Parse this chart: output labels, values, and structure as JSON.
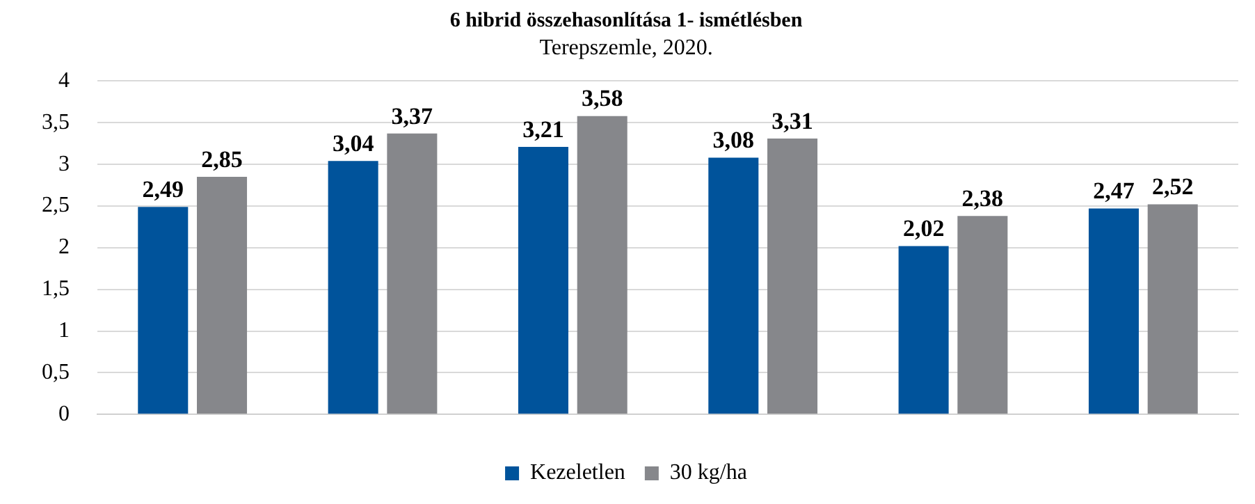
{
  "chart_data": {
    "type": "bar",
    "title": "6 hibrid összehasonlítása 1- ismétlésben",
    "subtitle": "Terepszemle, 2020.",
    "categories": [
      null,
      null,
      null,
      null,
      null,
      null
    ],
    "series": [
      {
        "name": "Kezeletlen",
        "color": "#00539b",
        "values": [
          2.49,
          3.04,
          3.21,
          3.08,
          2.02,
          2.47
        ],
        "value_labels": [
          "2,49",
          "3,04",
          "3,21",
          "3,08",
          "2,02",
          "2,47"
        ]
      },
      {
        "name": "30 kg/ha",
        "color": "#86878b",
        "values": [
          2.85,
          3.37,
          3.58,
          3.31,
          2.38,
          2.52
        ],
        "value_labels": [
          "2,85",
          "3,37",
          "3,58",
          "3,31",
          "2,38",
          "2,52"
        ]
      }
    ],
    "ylim": [
      0,
      4
    ],
    "yticks": [
      0,
      {
        "value": 0.5,
        "label": "0,5"
      },
      1,
      {
        "value": 1.5,
        "label": "1,5"
      },
      2,
      {
        "value": 2.5,
        "label": "2,5"
      },
      3,
      {
        "value": 3.5,
        "label": "3,5"
      },
      4
    ],
    "grid": "y",
    "legend": "bottom"
  }
}
